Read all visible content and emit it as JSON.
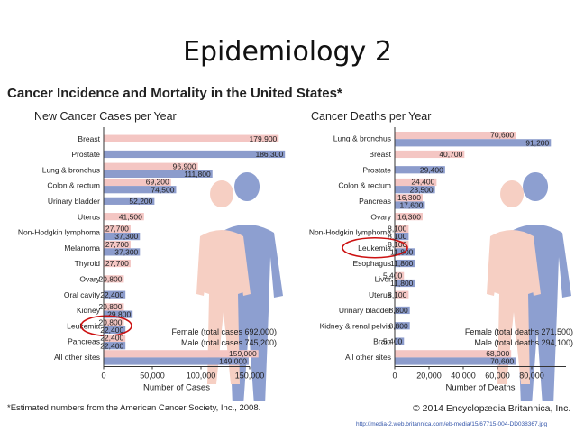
{
  "slide": {
    "title": "Epidemiology 2"
  },
  "figure": {
    "title": "Cancer Incidence and Mortality in the United States*",
    "footnote": "*Estimated numbers from the American Cancer Society, Inc., 2008.",
    "credit": "© 2014 Encyclopædia Britannica, Inc.",
    "source_url": "http://media-2.web.britannica.com/eb-media/15/67715-004-DD038367.jpg"
  },
  "colors": {
    "female": "#f4c6c3",
    "male": "#8c9ccc",
    "circle": "#cc1111",
    "female_figure": "#f6cfc3",
    "male_figure": "#8d9fd0"
  },
  "chart_data": [
    {
      "type": "bar",
      "title": "New Cancer Cases per Year",
      "xlabel": "Number of Cases",
      "xlim": [
        0,
        150000
      ],
      "xticks": [
        "0",
        "50,000",
        "100,000",
        "150,000"
      ],
      "legend": [
        "Female (total cases 692,000)",
        "Male (total cases 745,200)"
      ],
      "highlight": "Leukemia",
      "categories": [
        "Breast",
        "Prostate",
        "Lung & bronchus",
        "Colon & rectum",
        "Urinary bladder",
        "Uterus",
        "Non-Hodgkin lymphoma",
        "Melanoma",
        "Thyroid",
        "Ovary",
        "Oral cavity",
        "Kidney",
        "Leukemia",
        "Pancreas",
        "All other sites"
      ],
      "female": [
        179900,
        null,
        96900,
        69200,
        null,
        41500,
        27700,
        27700,
        27700,
        20800,
        null,
        20800,
        20800,
        22400,
        159000
      ],
      "male": [
        null,
        186300,
        111800,
        74500,
        52200,
        null,
        37300,
        37300,
        null,
        null,
        22400,
        29800,
        22400,
        22400,
        149000
      ],
      "female_labels": [
        "179,900",
        "",
        "96,900",
        "69,200",
        "",
        "41,500",
        "27,700",
        "27,700",
        "27,700",
        "20,800",
        "",
        "20,800",
        "20,800",
        "22,400",
        "159,000"
      ],
      "male_labels": [
        "",
        "186,300",
        "111,800",
        "74,500",
        "52,200",
        "",
        "37,300",
        "37,300",
        "",
        "",
        "22,400",
        "29,800",
        "22,400",
        "22,400",
        "149,000"
      ]
    },
    {
      "type": "bar",
      "title": "Cancer Deaths per Year",
      "xlabel": "Number of Deaths",
      "xlim": [
        0,
        100000
      ],
      "xticks": [
        "0",
        "20,000",
        "40,000",
        "60,000",
        "80,000"
      ],
      "legend": [
        "Female (total deaths 271,500)",
        "Male (total deaths 294,100)"
      ],
      "highlight": "Leukemia",
      "categories": [
        "Lung & bronchus",
        "Breast",
        "Prostate",
        "Colon & rectum",
        "Pancreas",
        "Ovary",
        "Non-Hodgkin lymphoma",
        "Leukemia",
        "Esophagus",
        "Liver",
        "Uterus",
        "Urinary bladder",
        "Kidney & renal pelvis",
        "Brain",
        "All other sites"
      ],
      "female": [
        70600,
        40700,
        null,
        24400,
        16300,
        16300,
        8100,
        8100,
        null,
        5400,
        8100,
        null,
        null,
        null,
        68000
      ],
      "male": [
        91200,
        null,
        29400,
        23500,
        17600,
        null,
        8100,
        11800,
        11800,
        11800,
        null,
        8800,
        8800,
        5400,
        70600
      ],
      "female_labels": [
        "70,600",
        "40,700",
        "",
        "24,400",
        "16,300",
        "16,300",
        "8,100",
        "8,100",
        "",
        "5,400",
        "8,100",
        "",
        "",
        "",
        "68,000"
      ],
      "male_labels": [
        "91,200",
        "",
        "29,400",
        "23,500",
        "17,600",
        "",
        "8,100",
        "11,800",
        "11,800",
        "11,800",
        "",
        "8,800",
        "8,800",
        "5,400",
        "70,600"
      ]
    }
  ]
}
